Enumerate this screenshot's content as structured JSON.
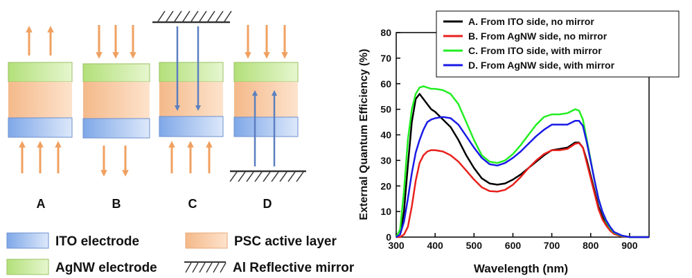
{
  "diagram": {
    "panels": [
      {
        "id": "A",
        "label": "A"
      },
      {
        "id": "B",
        "label": "B"
      },
      {
        "id": "C",
        "label": "C"
      },
      {
        "id": "D",
        "label": "D"
      }
    ],
    "legend": {
      "ito": "ITO electrode",
      "psc": "PSC active layer",
      "agnw": "AgNW electrode",
      "mirror": "Al Reflective mirror"
    },
    "colors": {
      "ito": "#a9c4ee",
      "psc": "#f8cba0",
      "agnw": "#c9ea96",
      "arrow_orange": "#f0a060",
      "arrow_blue": "#5b7fc0"
    }
  },
  "chart_data": {
    "type": "line",
    "title": "",
    "xlabel": "Wavelength (nm)",
    "ylabel": "External Quantum Efficiency (%)",
    "xlim": [
      300,
      950
    ],
    "ylim": [
      0,
      80
    ],
    "xticks": [
      300,
      400,
      500,
      600,
      700,
      800,
      900
    ],
    "yticks": [
      0,
      10,
      20,
      30,
      40,
      50,
      60,
      70,
      80
    ],
    "grid": false,
    "legend_position": "top-right",
    "series": [
      {
        "name": "A. From ITO side, no mirror",
        "color": "#000000",
        "x": [
          300,
          310,
          320,
          330,
          340,
          350,
          360,
          370,
          380,
          390,
          400,
          420,
          440,
          460,
          480,
          500,
          520,
          540,
          560,
          580,
          600,
          620,
          640,
          660,
          680,
          700,
          720,
          740,
          760,
          770,
          780,
          790,
          800,
          810,
          820,
          830,
          840,
          850,
          860,
          880,
          900,
          920,
          950
        ],
        "y": [
          0,
          1,
          10,
          28,
          45,
          54,
          56,
          54,
          52,
          50,
          49,
          46,
          43,
          38,
          32,
          27,
          23,
          21,
          20.5,
          21,
          22.5,
          24.5,
          27,
          29.5,
          32,
          34,
          34.5,
          35,
          37,
          37,
          35,
          30,
          24,
          18,
          12,
          8,
          5,
          3,
          1.5,
          0.5,
          0,
          0,
          0
        ]
      },
      {
        "name": "B. From AgNW side, no mirror",
        "color": "#e8201c",
        "x": [
          300,
          310,
          320,
          330,
          340,
          350,
          360,
          370,
          380,
          390,
          400,
          420,
          440,
          460,
          480,
          500,
          520,
          540,
          560,
          580,
          600,
          620,
          640,
          660,
          680,
          700,
          720,
          740,
          760,
          770,
          780,
          790,
          800,
          810,
          820,
          830,
          840,
          850,
          860,
          880,
          900,
          920,
          950
        ],
        "y": [
          0,
          0,
          1,
          4,
          12,
          22,
          29,
          32,
          33.5,
          34,
          34,
          33.5,
          32,
          29.5,
          26,
          22.5,
          19.5,
          18,
          17.8,
          18.5,
          20.5,
          23.5,
          27,
          30,
          32.5,
          34,
          34,
          34.5,
          36.5,
          36.8,
          35,
          29,
          23,
          17,
          11,
          7,
          4.5,
          2.5,
          1.2,
          0.3,
          0,
          0,
          0
        ]
      },
      {
        "name": "C. From ITO side, with mirror",
        "color": "#22ee22",
        "x": [
          300,
          310,
          320,
          330,
          340,
          350,
          360,
          370,
          380,
          390,
          400,
          420,
          440,
          460,
          480,
          500,
          520,
          540,
          560,
          580,
          600,
          620,
          640,
          660,
          680,
          700,
          720,
          740,
          760,
          770,
          780,
          790,
          800,
          810,
          820,
          830,
          840,
          850,
          860,
          880,
          900,
          920,
          950
        ],
        "y": [
          0,
          3,
          18,
          38,
          50,
          56,
          58.5,
          59,
          58.5,
          58,
          58,
          57.5,
          56,
          52,
          45,
          38,
          32,
          29.5,
          29,
          30,
          32.5,
          36,
          40,
          44,
          47,
          48,
          48,
          48.5,
          50,
          49.5,
          46,
          38,
          30,
          22,
          15,
          10,
          6,
          3.5,
          1.8,
          0.5,
          0,
          0,
          0
        ]
      },
      {
        "name": "D. From AgNW side, with mirror",
        "color": "#1a1ae6",
        "x": [
          300,
          310,
          320,
          330,
          340,
          350,
          360,
          370,
          380,
          390,
          400,
          420,
          440,
          460,
          480,
          500,
          520,
          540,
          560,
          580,
          600,
          620,
          640,
          660,
          680,
          700,
          720,
          740,
          760,
          770,
          780,
          790,
          800,
          810,
          820,
          830,
          840,
          850,
          860,
          880,
          900,
          920,
          950
        ],
        "y": [
          0,
          1,
          6,
          15,
          25,
          33,
          38,
          42,
          45,
          46,
          46.5,
          47,
          46.5,
          44,
          39.5,
          35,
          31,
          28.5,
          28,
          29,
          31,
          33.5,
          36.5,
          39.5,
          42,
          44,
          44,
          44,
          45.5,
          45.5,
          43.5,
          37,
          29.5,
          22,
          15,
          10,
          6.5,
          4,
          2,
          0.6,
          0,
          0,
          0
        ]
      }
    ]
  }
}
